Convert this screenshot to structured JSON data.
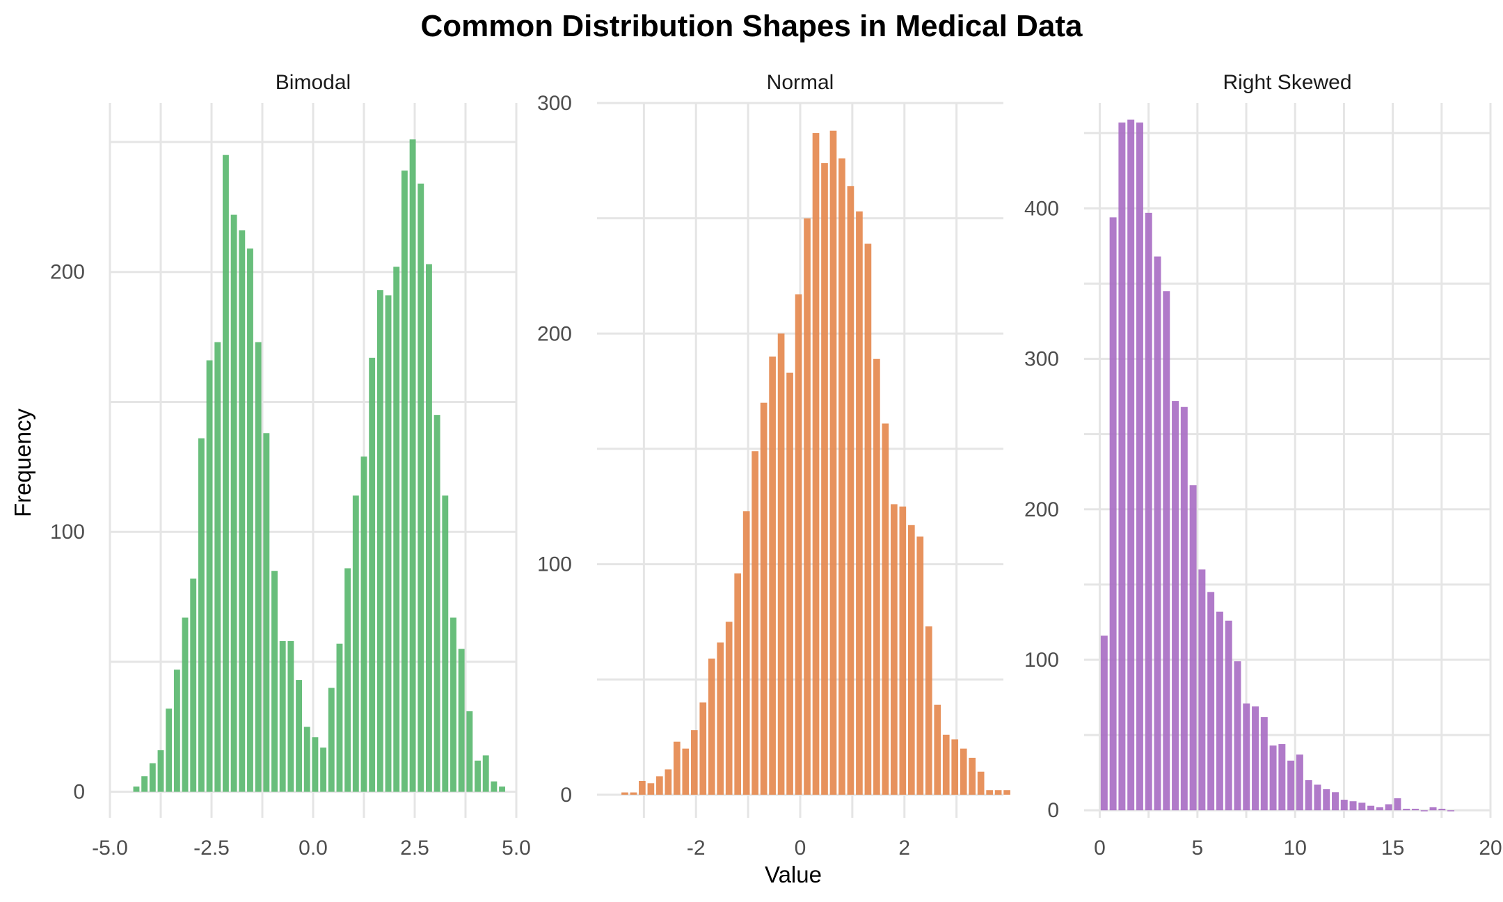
{
  "chart_data": {
    "type": "bar",
    "title": "Common Distribution Shapes in Medical Data",
    "xlabel": "Value",
    "ylabel": "Frequency",
    "panels": [
      {
        "name": "Bimodal",
        "color": "#5bb870",
        "xlim": [
          -5.0,
          5.0
        ],
        "ylim": [
          -10,
          265
        ],
        "xticks": [
          -5.0,
          -2.5,
          0.0,
          2.5,
          5.0
        ],
        "xtick_labels": [
          "-5.0",
          "-2.5",
          "0.0",
          "2.5",
          "5.0"
        ],
        "yticks": [
          0,
          100,
          200
        ],
        "ytick_labels": [
          "0",
          "100",
          "200"
        ],
        "bin_start": -4.45,
        "bin_width": 0.2,
        "values": [
          2,
          6,
          11,
          16,
          32,
          47,
          67,
          82,
          136,
          166,
          173,
          245,
          222,
          216,
          209,
          173,
          138,
          85,
          58,
          58,
          43,
          25,
          21,
          17,
          40,
          57,
          86,
          114,
          129,
          167,
          193,
          191,
          202,
          239,
          251,
          234,
          203,
          145,
          114,
          67,
          55,
          31,
          12,
          14,
          4,
          2
        ]
      },
      {
        "name": "Normal",
        "color": "#e5894f",
        "xlim": [
          -3.9,
          3.9
        ],
        "ylim": [
          -10,
          300
        ],
        "xticks": [
          -2,
          0,
          2
        ],
        "xtick_labels": [
          "-2",
          "0",
          "2"
        ],
        "yticks": [
          0,
          100,
          200,
          300
        ],
        "ytick_labels": [
          "0",
          "100",
          "200",
          "300"
        ],
        "bin_start": -3.45,
        "bin_width": 0.1667,
        "values": [
          1,
          1,
          6,
          5,
          8,
          11,
          23,
          20,
          28,
          40,
          59,
          66,
          75,
          96,
          123,
          149,
          170,
          190,
          200,
          183,
          217,
          250,
          287,
          274,
          288,
          276,
          264,
          253,
          239,
          189,
          161,
          126,
          125,
          117,
          112,
          73,
          39,
          26,
          24,
          20,
          16,
          10,
          2,
          2,
          2
        ]
      },
      {
        "name": "Right Skewed",
        "color": "#a96fc4",
        "xlim": [
          -0.8,
          20.0
        ],
        "ylim": [
          -5,
          470
        ],
        "xticks": [
          0,
          5,
          10,
          15,
          20
        ],
        "xtick_labels": [
          "0",
          "5",
          "10",
          "15",
          "20"
        ],
        "yticks": [
          0,
          100,
          200,
          300,
          400
        ],
        "ytick_labels": [
          "0",
          "100",
          "200",
          "300",
          "400"
        ],
        "bin_start": 0,
        "bin_width": 0.455,
        "values": [
          116,
          394,
          457,
          459,
          457,
          397,
          368,
          345,
          272,
          268,
          216,
          160,
          145,
          132,
          126,
          99,
          71,
          69,
          62,
          43,
          44,
          33,
          37,
          20,
          17,
          14,
          12,
          7,
          6,
          5,
          3,
          2,
          4,
          8,
          1,
          1,
          0,
          2,
          1,
          0
        ]
      }
    ]
  }
}
